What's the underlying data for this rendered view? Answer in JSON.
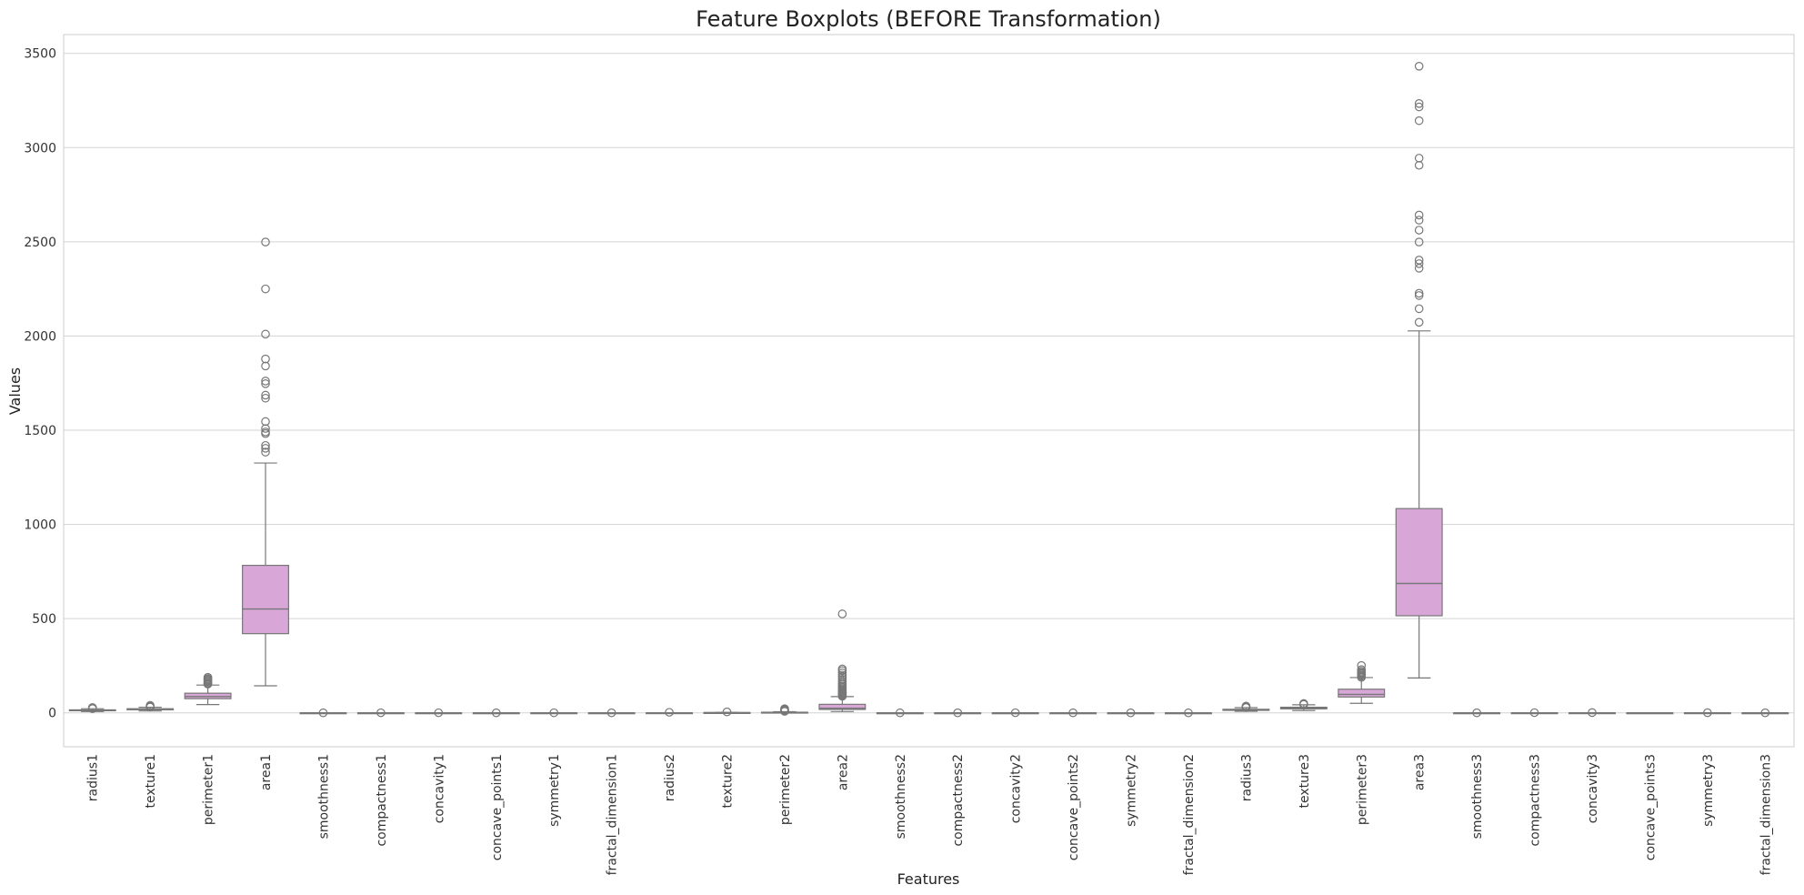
{
  "chart_data": {
    "type": "boxplot",
    "title": "Feature Boxplots (BEFORE Transformation)",
    "xlabel": "Features",
    "ylabel": "Values",
    "ylim": [
      -180,
      3600
    ],
    "yticks": [
      0,
      500,
      1000,
      1500,
      2000,
      2500,
      3000,
      3500
    ],
    "grid": "y",
    "box_color": "#d8a7d8",
    "line_color": "#777777",
    "categories": [
      "radius1",
      "texture1",
      "perimeter1",
      "area1",
      "smoothness1",
      "compactness1",
      "concavity1",
      "concave_points1",
      "symmetry1",
      "fractal_dimension1",
      "radius2",
      "texture2",
      "perimeter2",
      "area2",
      "smoothness2",
      "compactness2",
      "concavity2",
      "concave_points2",
      "symmetry2",
      "fractal_dimension2",
      "radius3",
      "texture3",
      "perimeter3",
      "area3",
      "smoothness3",
      "compactness3",
      "concavity3",
      "concave_points3",
      "symmetry3",
      "fractal_dimension3"
    ],
    "boxes": [
      {
        "whislo": 7,
        "q1": 11.7,
        "med": 13.4,
        "q3": 15.8,
        "whishi": 21.9,
        "fliers": [
          22.3,
          23.3,
          24.3,
          25.2,
          27.2,
          28.1
        ]
      },
      {
        "whislo": 9.7,
        "q1": 16.2,
        "med": 18.8,
        "q3": 21.8,
        "whishi": 29.8,
        "fliers": [
          30.6,
          31.1,
          32.5,
          33.8,
          39.3
        ]
      },
      {
        "whislo": 43.8,
        "q1": 75.2,
        "med": 86.2,
        "q3": 104.1,
        "whishi": 147.3,
        "fliers": [
          152.8,
          155.1,
          158.9,
          165.5,
          171.5,
          176.5,
          182.1,
          188.5
        ]
      },
      {
        "whislo": 143.5,
        "q1": 420.3,
        "med": 551.1,
        "q3": 782.7,
        "whishi": 1326,
        "fliers": [
          1384,
          1404,
          1419,
          1482,
          1491,
          1509,
          1546,
          1670,
          1686,
          1747,
          1761,
          1841,
          1878,
          2010,
          2250,
          2499
        ]
      },
      {
        "whislo": 0.06,
        "q1": 0.09,
        "med": 0.1,
        "q3": 0.11,
        "whishi": 0.13,
        "fliers": [
          0.16
        ]
      },
      {
        "whislo": 0.02,
        "q1": 0.06,
        "med": 0.09,
        "q3": 0.13,
        "whishi": 0.23,
        "fliers": [
          0.35
        ]
      },
      {
        "whislo": 0,
        "q1": 0.03,
        "med": 0.06,
        "q3": 0.13,
        "whishi": 0.28,
        "fliers": [
          0.43
        ]
      },
      {
        "whislo": 0,
        "q1": 0.02,
        "med": 0.03,
        "q3": 0.07,
        "whishi": 0.15,
        "fliers": [
          0.2
        ]
      },
      {
        "whislo": 0.12,
        "q1": 0.16,
        "med": 0.18,
        "q3": 0.2,
        "whishi": 0.25,
        "fliers": [
          0.3
        ]
      },
      {
        "whislo": 0.05,
        "q1": 0.06,
        "med": 0.06,
        "q3": 0.07,
        "whishi": 0.08,
        "fliers": [
          0.1
        ]
      },
      {
        "whislo": 0.11,
        "q1": 0.23,
        "med": 0.32,
        "q3": 0.48,
        "whishi": 0.84,
        "fliers": [
          2.87
        ]
      },
      {
        "whislo": 0.36,
        "q1": 0.83,
        "med": 1.11,
        "q3": 1.47,
        "whishi": 2.43,
        "fliers": [
          4.88
        ]
      },
      {
        "whislo": 0.76,
        "q1": 1.61,
        "med": 2.29,
        "q3": 3.36,
        "whishi": 5.98,
        "fliers": [
          8,
          10,
          12,
          14,
          16,
          18,
          21.9
        ]
      },
      {
        "whislo": 6.8,
        "q1": 17.9,
        "med": 24.5,
        "q3": 45.2,
        "whishi": 86.2,
        "fliers": [
          88,
          90,
          93,
          96,
          100,
          104,
          108,
          112,
          117,
          122,
          128,
          135,
          142,
          150,
          158,
          168,
          178,
          190,
          200,
          212,
          224,
          233,
          525
        ]
      },
      {
        "whislo": 0,
        "q1": 0.01,
        "med": 0.01,
        "q3": 0.01,
        "whishi": 0.01,
        "fliers": [
          0.03
        ]
      },
      {
        "whislo": 0,
        "q1": 0.01,
        "med": 0.02,
        "q3": 0.03,
        "whishi": 0.06,
        "fliers": [
          0.14
        ]
      },
      {
        "whislo": 0,
        "q1": 0.02,
        "med": 0.03,
        "q3": 0.04,
        "whishi": 0.08,
        "fliers": [
          0.4
        ]
      },
      {
        "whislo": 0,
        "q1": 0.01,
        "med": 0.01,
        "q3": 0.01,
        "whishi": 0.02,
        "fliers": [
          0.05
        ]
      },
      {
        "whislo": 0.01,
        "q1": 0.02,
        "med": 0.02,
        "q3": 0.02,
        "whishi": 0.04,
        "fliers": [
          0.08
        ]
      },
      {
        "whislo": 0,
        "q1": 0,
        "med": 0,
        "q3": 0,
        "whishi": 0.01,
        "fliers": [
          0.03
        ]
      },
      {
        "whislo": 7.9,
        "q1": 13,
        "med": 15,
        "q3": 18.8,
        "whishi": 27.5,
        "fliers": [
          28.1,
          29.2,
          30.7,
          32.5,
          33.1,
          36
        ]
      },
      {
        "whislo": 12,
        "q1": 21.1,
        "med": 25.4,
        "q3": 29.7,
        "whishi": 42.7,
        "fliers": [
          44.9,
          45.4,
          47.2,
          49.5
        ]
      },
      {
        "whislo": 50.4,
        "q1": 84.1,
        "med": 97.7,
        "q3": 125.4,
        "whishi": 187.3,
        "fliers": [
          188,
          195,
          199.5,
          205.7,
          211.5,
          214,
          220.8,
          229.3,
          251.2
        ]
      },
      {
        "whislo": 185.2,
        "q1": 515.3,
        "med": 686.5,
        "q3": 1084,
        "whishi": 2027,
        "fliers": [
          2073,
          2145,
          2215,
          2227,
          2360,
          2384,
          2403,
          2499,
          2562,
          2615,
          2642,
          2906,
          2944,
          3143,
          3216,
          3234,
          3432
        ]
      },
      {
        "whislo": 0.07,
        "q1": 0.12,
        "med": 0.13,
        "q3": 0.15,
        "whishi": 0.19,
        "fliers": [
          0.22
        ]
      },
      {
        "whislo": 0.03,
        "q1": 0.15,
        "med": 0.21,
        "q3": 0.34,
        "whishi": 0.63,
        "fliers": [
          1.06
        ]
      },
      {
        "whislo": 0,
        "q1": 0.11,
        "med": 0.23,
        "q3": 0.38,
        "whishi": 0.78,
        "fliers": [
          1.25
        ]
      },
      {
        "whislo": 0,
        "q1": 0.06,
        "med": 0.1,
        "q3": 0.16,
        "whishi": 0.29,
        "fliers": []
      },
      {
        "whislo": 0.16,
        "q1": 0.25,
        "med": 0.28,
        "q3": 0.32,
        "whishi": 0.42,
        "fliers": [
          0.66
        ]
      },
      {
        "whislo": 0.06,
        "q1": 0.07,
        "med": 0.08,
        "q3": 0.09,
        "whishi": 0.12,
        "fliers": [
          0.21
        ]
      }
    ]
  }
}
